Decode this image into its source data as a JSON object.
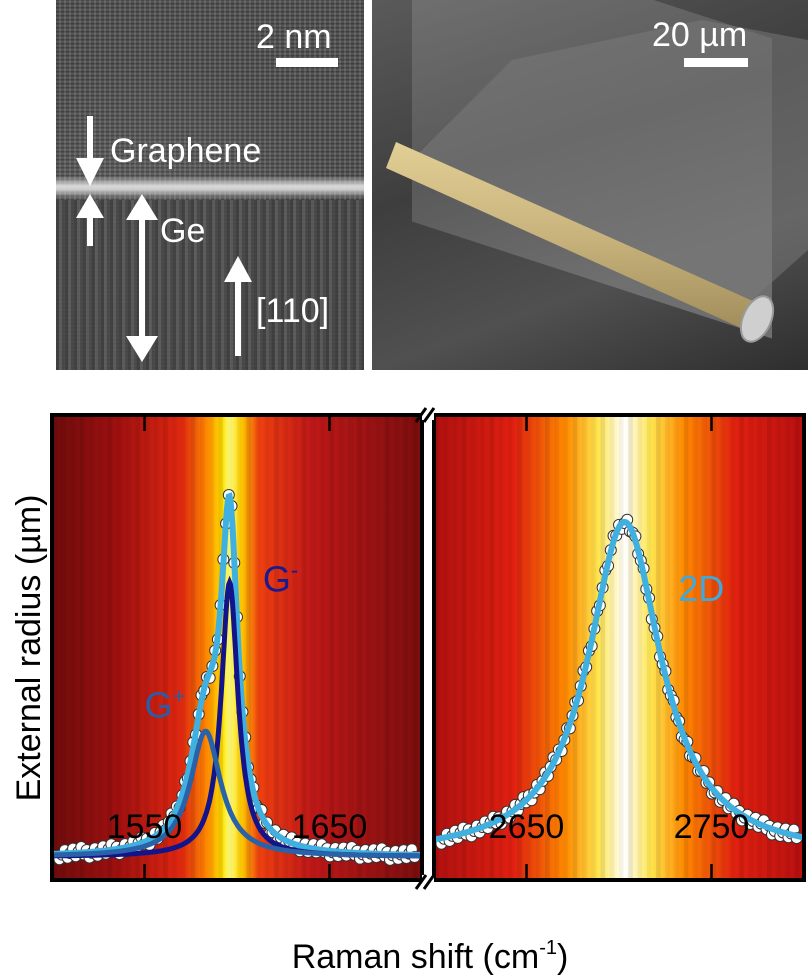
{
  "images": {
    "tem": {
      "scale_label": "2 nm",
      "labels": {
        "graphene": "Graphene",
        "ge": "Ge",
        "direction": "[110]"
      }
    },
    "sem": {
      "scale_label": "20 µm"
    }
  },
  "chart_data": {
    "type": "line",
    "background": "heatmap",
    "xlabel": "Raman shift (cm",
    "xlabel_sup": "-1",
    "xlabel_tail": ")",
    "ylabel": "External radius (µm)",
    "broken_axis": true,
    "panels": [
      {
        "xlim": [
          1500,
          1700
        ],
        "xticks": [
          1550,
          1650
        ],
        "tick_labels": [
          "1550",
          "1650"
        ],
        "peak_center": 1596,
        "annotations": [
          {
            "text": "G",
            "sup": "-",
            "color": "#1a1a8c"
          },
          {
            "text": "G",
            "sup": "+",
            "color": "#2a5da8"
          }
        ],
        "series": [
          {
            "role": "data",
            "baseline": 0.05,
            "components": [
              {
                "center": 1596,
                "amp": 0.675,
                "width": 5.5
              },
              {
                "center": 1583,
                "amp": 0.27,
                "width": 10
              }
            ]
          },
          {
            "role": "fit-total",
            "color": "#3fb0e0",
            "baseline": 0.05,
            "components": [
              {
                "center": 1596,
                "amp": 0.675,
                "width": 5.5
              },
              {
                "center": 1583,
                "amp": 0.27,
                "width": 10
              }
            ]
          },
          {
            "role": "G-minus",
            "color": "#14148a",
            "baseline": 0.05,
            "components": [
              {
                "center": 1596,
                "amp": 0.59,
                "width": 5.5
              }
            ]
          },
          {
            "role": "G-plus",
            "color": "#2a62a8",
            "baseline": 0.05,
            "components": [
              {
                "center": 1583,
                "amp": 0.27,
                "width": 10
              }
            ]
          }
        ]
      },
      {
        "xlim": [
          2600,
          2800
        ],
        "xticks": [
          2650,
          2750
        ],
        "tick_labels": [
          "2650",
          "2750"
        ],
        "peak_center": 2703,
        "annotations": [
          {
            "text": "2D",
            "sup": "",
            "color": "#3fa9dc"
          }
        ],
        "series": [
          {
            "role": "data",
            "baseline": 0.05,
            "components": [
              {
                "center": 2703,
                "amp": 0.72,
                "width": 24
              }
            ]
          },
          {
            "role": "fit-total",
            "color": "#3fb0e0",
            "baseline": 0.05,
            "components": [
              {
                "center": 2703,
                "amp": 0.72,
                "width": 24
              }
            ]
          }
        ]
      }
    ]
  }
}
